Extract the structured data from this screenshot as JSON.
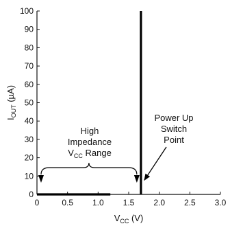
{
  "chart_data": {
    "type": "line",
    "x": {
      "label_main": "V",
      "label_sub": "CC",
      "label_suffix": " (V)",
      "range": [
        0,
        3.0
      ],
      "ticks": [
        0,
        0.5,
        1.0,
        1.5,
        2.0,
        2.5,
        3.0
      ],
      "tick_labels": [
        "0",
        "0.5",
        "1.0",
        "1.5",
        "2.0",
        "2.5",
        "3.0"
      ]
    },
    "y": {
      "label_main": "I",
      "label_sub": "OUT",
      "label_suffix": " (µA)",
      "range": [
        0,
        100
      ],
      "ticks": [
        0,
        10,
        20,
        30,
        40,
        50,
        60,
        70,
        80,
        90,
        100
      ],
      "tick_labels": [
        "0",
        "10",
        "20",
        "30",
        "40",
        "50",
        "60",
        "70",
        "80",
        "90",
        "100"
      ]
    },
    "series": [
      {
        "points": [
          [
            0,
            0
          ],
          [
            1.2,
            0
          ]
        ]
      },
      {
        "points": [
          [
            1.7,
            0
          ],
          [
            1.7,
            100
          ]
        ]
      }
    ],
    "annotations": {
      "range_label": {
        "line1": "High",
        "line2": "Impedance",
        "line3_main": "V",
        "line3_sub": "CC",
        "line3_suffix": " Range",
        "x_start": 0,
        "x_end": 1.7
      },
      "switch_label": {
        "line1": "Power Up",
        "line2": "Switch",
        "line3": "Point",
        "points_to": [
          1.7,
          7
        ]
      }
    },
    "grid": false,
    "colors": {
      "line": "#000000",
      "axis": "#111111",
      "text": "#111111"
    }
  }
}
